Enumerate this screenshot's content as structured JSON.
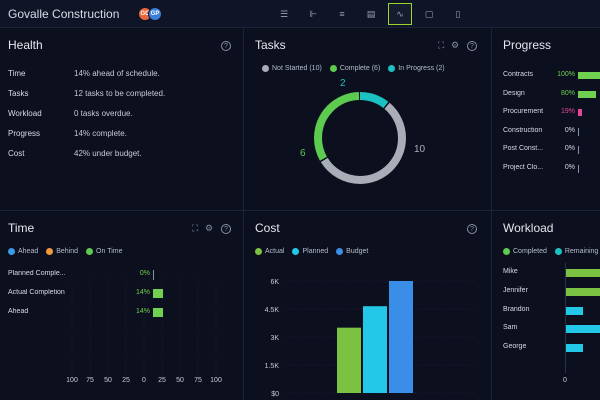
{
  "app": {
    "title": "Govalle Construction"
  },
  "avatars": [
    {
      "initials": "GC",
      "color": "#e8663b"
    },
    {
      "initials": "GP",
      "color": "#3b7dd8"
    }
  ],
  "toolbar": [
    {
      "icon": "list-icon",
      "glyph": "☰",
      "active": false
    },
    {
      "icon": "gantt-icon",
      "glyph": "⊩",
      "active": false
    },
    {
      "icon": "board-icon",
      "glyph": "≡",
      "active": false
    },
    {
      "icon": "sheet-icon",
      "glyph": "▤",
      "active": false
    },
    {
      "icon": "dashboard-icon",
      "glyph": "∿",
      "active": true
    },
    {
      "icon": "calendar-icon",
      "glyph": "▢",
      "active": false
    },
    {
      "icon": "file-icon",
      "glyph": "▯",
      "active": false
    }
  ],
  "health": {
    "title": "Health",
    "rows": [
      {
        "label": "Time",
        "value": "14% ahead of schedule."
      },
      {
        "label": "Tasks",
        "value": "12 tasks to be completed."
      },
      {
        "label": "Workload",
        "value": "0 tasks overdue."
      },
      {
        "label": "Progress",
        "value": "14% complete."
      },
      {
        "label": "Cost",
        "value": "42% under budget."
      }
    ]
  },
  "tasks": {
    "title": "Tasks",
    "legend": [
      {
        "label": "Not Started (10)",
        "color": "#a9adb8"
      },
      {
        "label": "Complete (6)",
        "color": "#5ccb4f"
      },
      {
        "label": "In Progress (2)",
        "color": "#1cc2c2"
      }
    ],
    "labels": {
      "in_progress": "2",
      "complete": "6",
      "not_started": "10"
    }
  },
  "progress": {
    "title": "Progress",
    "rows": [
      {
        "name": "Contracts",
        "pct": "100%",
        "fraction": 1.0,
        "color": "#6fd14f",
        "pct_color": "#6fd14f"
      },
      {
        "name": "Design",
        "pct": "80%",
        "fraction": 0.8,
        "color": "#6fd14f",
        "pct_color": "#6fd14f"
      },
      {
        "name": "Procurement",
        "pct": "19%",
        "fraction": 0.19,
        "color": "#e8449a",
        "pct_color": "#e8449a"
      },
      {
        "name": "Construction",
        "pct": "0%",
        "fraction": 0,
        "color": "#8a90a3",
        "pct_color": "#d9dce6"
      },
      {
        "name": "Post Const...",
        "pct": "0%",
        "fraction": 0,
        "color": "#8a90a3",
        "pct_color": "#d9dce6"
      },
      {
        "name": "Project Clo...",
        "pct": "0%",
        "fraction": 0,
        "color": "#8a90a3",
        "pct_color": "#d9dce6"
      }
    ]
  },
  "time": {
    "title": "Time",
    "legend": [
      {
        "label": "Ahead",
        "color": "#3b9be8"
      },
      {
        "label": "Behind",
        "color": "#f29a3b"
      },
      {
        "label": "On Time",
        "color": "#5ccb4f"
      }
    ],
    "rows": [
      {
        "name": "Planned Comple...",
        "pct": "0%",
        "fraction": 0
      },
      {
        "name": "Actual Completion",
        "pct": "14%",
        "fraction": 0.14
      },
      {
        "name": "Ahead",
        "pct": "14%",
        "fraction": 0.14
      }
    ],
    "axis": [
      "100",
      "75",
      "50",
      "25",
      "0",
      "25",
      "50",
      "75",
      "100"
    ]
  },
  "cost": {
    "title": "Cost",
    "legend": [
      {
        "label": "Actual",
        "color": "#7cc242"
      },
      {
        "label": "Planned",
        "color": "#23c7e8"
      },
      {
        "label": "Budget",
        "color": "#3b8ee8"
      }
    ],
    "chart_data": {
      "type": "bar",
      "categories": [
        "Actual",
        "Planned",
        "Budget"
      ],
      "values": [
        3500,
        4650,
        6000
      ],
      "colors": [
        "#7cc242",
        "#23c7e8",
        "#3b8ee8"
      ],
      "ylim": [
        0,
        6000
      ],
      "yticks": [
        "6K",
        "4.5K",
        "3K",
        "1.5K",
        "$0"
      ]
    }
  },
  "workload": {
    "title": "Workload",
    "legend": [
      {
        "label": "Completed",
        "color": "#5ccb4f"
      },
      {
        "label": "Remaining",
        "color": "#1cc2c2"
      }
    ],
    "rows": [
      {
        "name": "Mike",
        "color": "#7cc242",
        "fraction": 1.0
      },
      {
        "name": "Jennifer",
        "color": "#7cc242",
        "fraction": 1.0
      },
      {
        "name": "Brandon",
        "color": "#23c7e8",
        "fraction": 0.5
      },
      {
        "name": "Sam",
        "color": "#23c7e8",
        "fraction": 1.0
      },
      {
        "name": "George",
        "color": "#23c7e8",
        "fraction": 0.5
      }
    ],
    "axis_zero": "0"
  }
}
